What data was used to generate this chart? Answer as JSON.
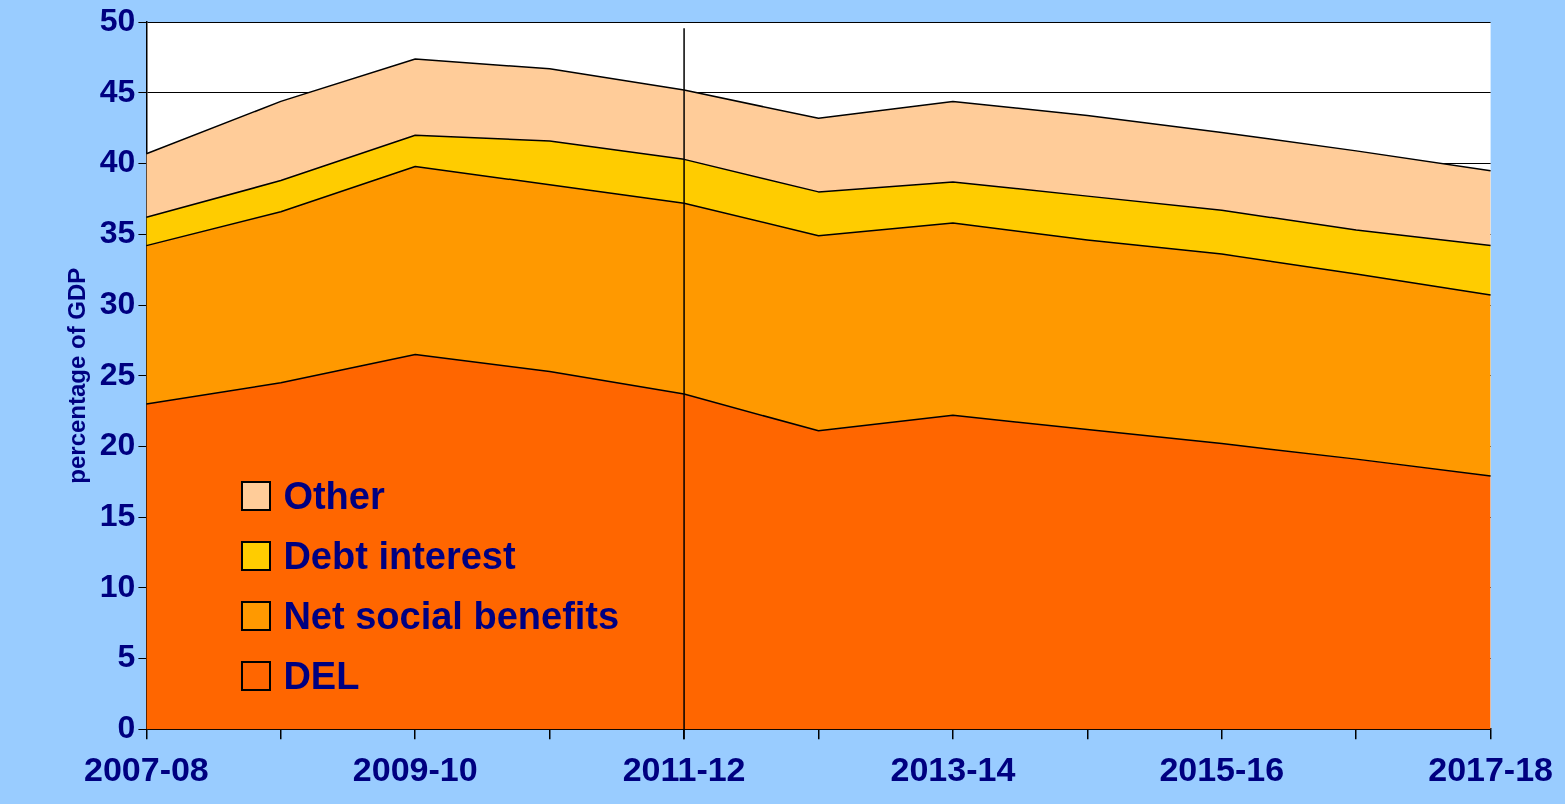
{
  "chart_data": {
    "type": "area",
    "stacked": true,
    "ylabel": "percentage of GDP",
    "categories": [
      "2007-08",
      null,
      "2009-10",
      null,
      "2011-12",
      null,
      "2013-14",
      null,
      "2015-16",
      null,
      "2017-18"
    ],
    "ylim": [
      0,
      50
    ],
    "yticks": [
      0,
      5,
      10,
      15,
      20,
      25,
      30,
      35,
      40,
      45,
      50
    ],
    "grid": "y",
    "legend": "bottom left",
    "ref_lines": [
      {
        "axis": "x",
        "value": "2011-12",
        "color": "#000000"
      }
    ],
    "series": [
      {
        "name": "DEL",
        "color": "#ff6600",
        "values": [
          23.0,
          24.5,
          26.5,
          25.3,
          23.7,
          21.1,
          22.2,
          21.2,
          20.2,
          19.1,
          17.9
        ]
      },
      {
        "name": "Net social benefits",
        "color": "#ff9900",
        "values": [
          11.2,
          12.1,
          13.3,
          13.2,
          13.5,
          13.8,
          13.6,
          13.4,
          13.4,
          13.1,
          12.8
        ]
      },
      {
        "name": "Debt interest",
        "color": "#ffcc00",
        "values": [
          2.0,
          2.2,
          2.2,
          3.1,
          3.1,
          3.1,
          2.9,
          3.1,
          3.1,
          3.1,
          3.5
        ]
      },
      {
        "name": "Other",
        "color": "#ffcc99",
        "values": [
          4.5,
          5.6,
          5.4,
          5.1,
          4.9,
          5.2,
          5.7,
          5.7,
          5.5,
          5.6,
          5.3
        ]
      }
    ]
  }
}
